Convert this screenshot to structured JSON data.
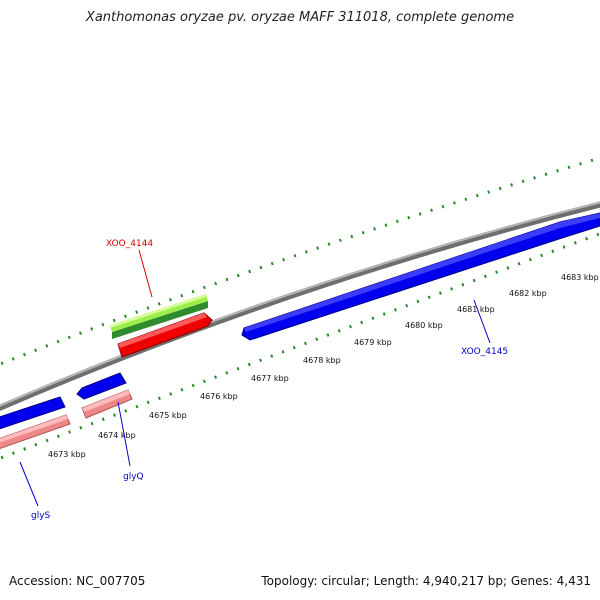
{
  "title": "Xanthomonas oryzae pv. oryzae MAFF 311018, complete genome",
  "footer": {
    "accession": "Accession: NC_007705",
    "summary": "Topology: circular; Length: 4,940,217 bp; Genes: 4,431"
  },
  "ticks": [
    "4673 kbp",
    "4674 kbp",
    "4675 kbp",
    "4676 kbp",
    "4677 kbp",
    "4678 kbp",
    "4679 kbp",
    "4680 kbp",
    "4681 kbp",
    "4682 kbp",
    "4683 kbp"
  ],
  "genes": [
    {
      "name": "XOO_4144",
      "color": "#d40000"
    },
    {
      "name": "XOO_4145",
      "color": "#0000cc"
    },
    {
      "name": "glyQ",
      "color": "#0000cc"
    },
    {
      "name": "glyS",
      "color": "#0000cc"
    }
  ],
  "colors": {
    "backbone": "#8a8a8a",
    "forward_gene": "#0000ee",
    "reverse_gene": "#ee0000",
    "rna": "#ee8888",
    "gc_positive": "#2e8b2e",
    "gc_light": "#99ee44",
    "tick_dots": "#1d7a1d"
  }
}
